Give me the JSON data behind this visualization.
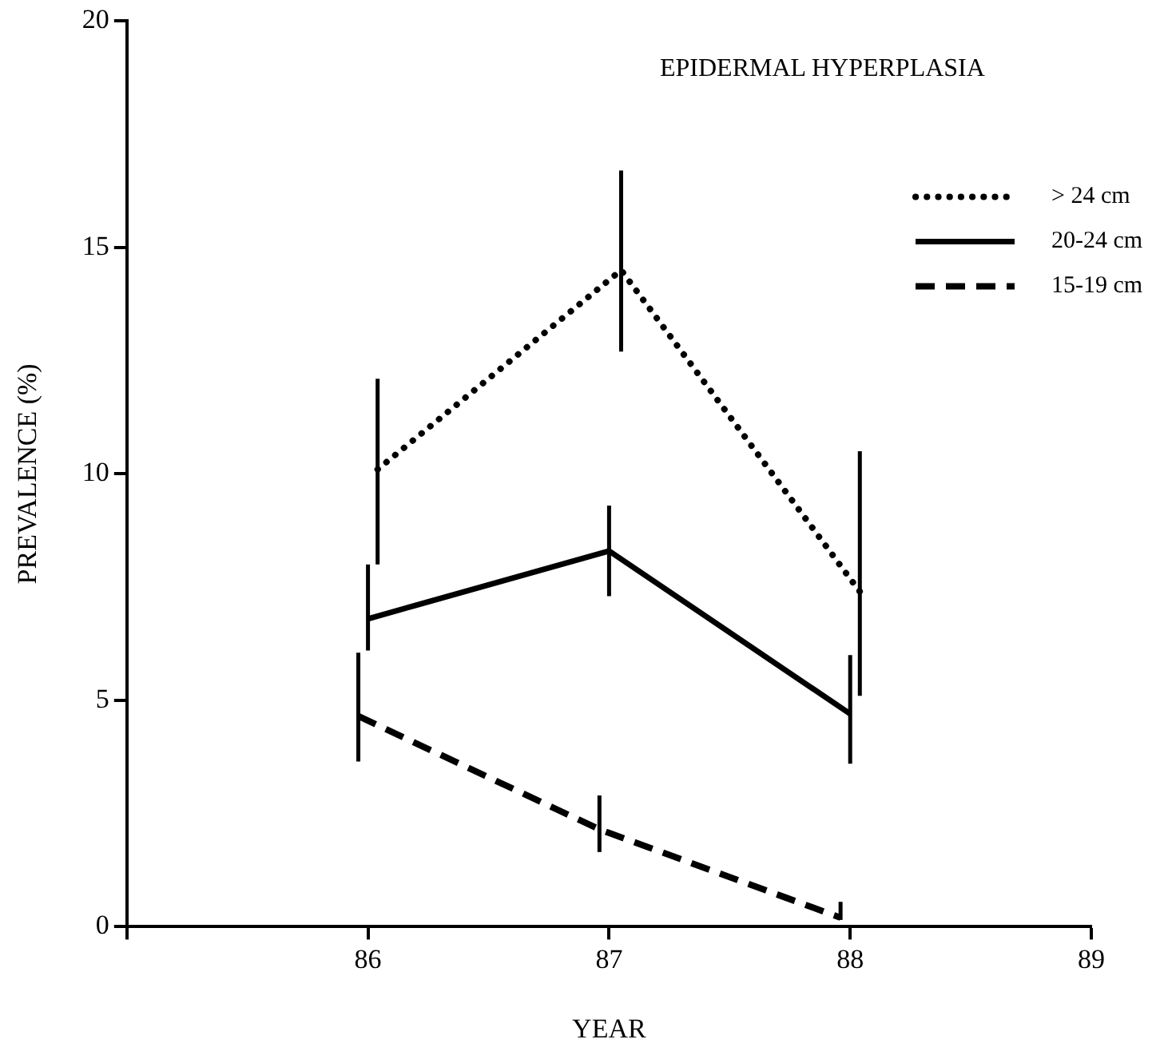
{
  "chart_data": {
    "type": "line",
    "title": "EPIDERMAL HYPERPLASIA",
    "xlabel": "YEAR",
    "ylabel": "PREVALENCE (%)",
    "xlim": [
      85,
      89
    ],
    "xticks": [
      {
        "value": 85,
        "label": null
      },
      86,
      87,
      88,
      89
    ],
    "ylim": [
      0,
      20
    ],
    "yticks": [
      0,
      5,
      10,
      15,
      20
    ],
    "grid": false,
    "legend": "top right",
    "marker": "none",
    "series": [
      {
        "name": "> 24 cm",
        "color": "#000000",
        "line_style": "dotted",
        "x": [
          86.04,
          87.05,
          88.04
        ],
        "values": [
          10.1,
          14.5,
          7.4
        ],
        "errors": [
          [
            8.0,
            12.1
          ],
          [
            12.7,
            16.7
          ],
          [
            5.1,
            10.5
          ]
        ]
      },
      {
        "name": "20-24 cm",
        "color": "#000000",
        "line_style": "solid",
        "x": [
          86.0,
          87.0,
          88.0
        ],
        "values": [
          6.8,
          8.3,
          4.7
        ],
        "errors": [
          [
            6.1,
            8.0
          ],
          [
            7.3,
            9.3
          ],
          [
            3.6,
            6.0
          ]
        ]
      },
      {
        "name": "15-19 cm",
        "color": "#000000",
        "line_style": "dashed",
        "x": [
          85.96,
          86.96,
          87.96
        ],
        "values": [
          4.65,
          2.15,
          0.2
        ],
        "errors": [
          [
            3.65,
            6.05
          ],
          [
            1.65,
            2.9
          ],
          [
            0.15,
            0.55
          ]
        ]
      }
    ]
  }
}
